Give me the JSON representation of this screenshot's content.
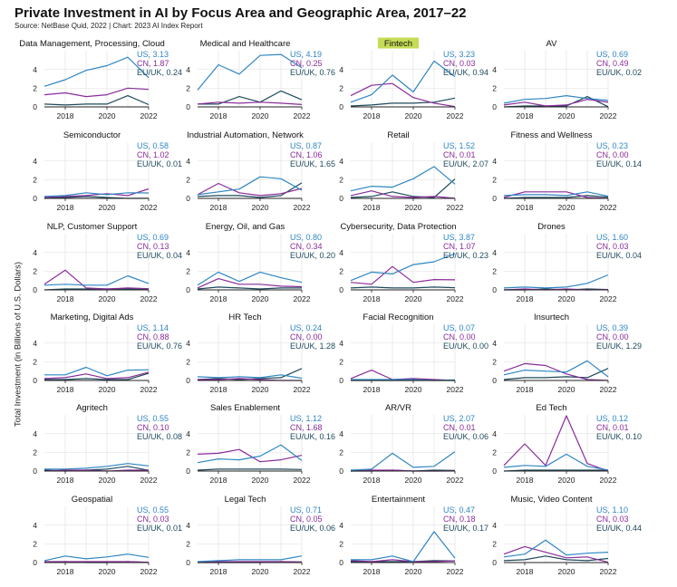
{
  "title": "Private Investment in AI by Focus Area and Geographic Area, 2017–22",
  "subtitle": "Source: NetBase Quid, 2022 | Chart: 2023 AI Index Report",
  "ylabel": "Total Investment (in Billions of U.S. Dollars)",
  "colors": {
    "US": "#2f86c3",
    "CN": "#8a2c9a",
    "EU/UK": "#1e4a5c",
    "highlight": "#c5dc56",
    "grid": "#e3e3e3",
    "axis": "#222222"
  },
  "chart_data": {
    "type": "line",
    "layout": "small-multiples",
    "x": [
      2017,
      2018,
      2019,
      2020,
      2021,
      2022
    ],
    "xticks": [
      "2018",
      "2020",
      "2022"
    ],
    "yticks": [
      "0",
      "2",
      "4"
    ],
    "ylim": [
      0,
      6
    ],
    "series_names": [
      "US",
      "CN",
      "EU/UK"
    ],
    "panels": [
      {
        "title": "Data Management, Processing, Cloud",
        "labels": [
          "US, 3.13",
          "CN, 1.87",
          "EU/UK, 0.24"
        ],
        "US": [
          2.2,
          2.9,
          3.9,
          4.4,
          5.3,
          3.13
        ],
        "CN": [
          1.3,
          1.5,
          1.1,
          1.3,
          2.0,
          1.87
        ],
        "EU/UK": [
          0.3,
          0.2,
          0.3,
          0.3,
          1.2,
          0.24
        ]
      },
      {
        "title": "Medical and Healthcare",
        "labels": [
          "US, 4.19",
          "CN, 0.25",
          "EU/UK, 0.76"
        ],
        "US": [
          1.8,
          4.5,
          3.5,
          5.5,
          5.6,
          4.19
        ],
        "CN": [
          0.3,
          0.5,
          0.4,
          0.5,
          0.4,
          0.25
        ],
        "EU/UK": [
          0.3,
          0.3,
          1.1,
          0.5,
          1.7,
          0.76
        ]
      },
      {
        "title": "Fintech",
        "highlight": true,
        "labels": [
          "US, 3.23",
          "CN, 0.03",
          "EU/UK, 0.94"
        ],
        "US": [
          0.5,
          1.3,
          3.4,
          1.6,
          4.9,
          3.23
        ],
        "CN": [
          1.2,
          2.3,
          2.5,
          1.0,
          0.4,
          0.03
        ],
        "EU/UK": [
          0.1,
          0.2,
          0.4,
          0.4,
          0.5,
          0.94
        ]
      },
      {
        "title": "AV",
        "labels": [
          "US, 0.69",
          "CN, 0.49",
          "EU/UK, 0.02"
        ],
        "US": [
          0.4,
          0.8,
          0.9,
          1.2,
          0.9,
          0.69
        ],
        "CN": [
          0.2,
          0.5,
          0.1,
          0.2,
          0.8,
          0.49
        ],
        "EU/UK": [
          0.0,
          0.1,
          0.1,
          0.1,
          1.1,
          0.02
        ]
      },
      {
        "title": "Semiconductor",
        "labels": [
          "US, 0.58",
          "CN, 1.02",
          "EU/UK, 0.01"
        ],
        "US": [
          0.2,
          0.3,
          0.6,
          0.4,
          0.6,
          0.58
        ],
        "CN": [
          0.1,
          0.2,
          0.3,
          0.5,
          0.3,
          1.02
        ],
        "EU/UK": [
          0.0,
          0.1,
          0.2,
          0.1,
          0.0,
          0.01
        ]
      },
      {
        "title": "Industrial Automation, Network",
        "labels": [
          "US, 0.87",
          "CN, 1.06",
          "EU/UK, 1.65"
        ],
        "US": [
          0.4,
          0.7,
          1.0,
          2.3,
          2.1,
          0.87
        ],
        "CN": [
          0.4,
          1.6,
          0.6,
          0.3,
          0.5,
          1.06
        ],
        "EU/UK": [
          0.2,
          0.3,
          0.3,
          0.1,
          0.3,
          1.65
        ]
      },
      {
        "title": "Retail",
        "labels": [
          "US, 1.52",
          "CN, 0.01",
          "EU/UK, 2.07"
        ],
        "US": [
          0.8,
          1.3,
          1.2,
          2.1,
          3.4,
          1.52
        ],
        "CN": [
          0.3,
          0.8,
          0.2,
          0.1,
          0.2,
          0.01
        ],
        "EU/UK": [
          0.1,
          0.2,
          0.7,
          0.2,
          0.1,
          2.07
        ]
      },
      {
        "title": "Fitness and Wellness",
        "labels": [
          "US, 0.23",
          "CN, 0.00",
          "EU/UK, 0.14"
        ],
        "US": [
          0.3,
          0.4,
          0.4,
          0.3,
          0.7,
          0.23
        ],
        "CN": [
          0.1,
          0.7,
          0.7,
          0.7,
          0.1,
          0.0
        ],
        "EU/UK": [
          0.0,
          0.1,
          0.1,
          0.1,
          0.3,
          0.14
        ]
      },
      {
        "title": "NLP, Customer Support",
        "labels": [
          "US, 0.69",
          "CN, 0.13",
          "EU/UK, 0.04"
        ],
        "US": [
          0.5,
          0.6,
          0.5,
          0.5,
          1.5,
          0.69
        ],
        "CN": [
          0.6,
          2.1,
          0.2,
          0.1,
          0.2,
          0.13
        ],
        "EU/UK": [
          0.0,
          0.1,
          0.1,
          0.1,
          0.1,
          0.04
        ]
      },
      {
        "title": "Energy, Oil, and Gas",
        "labels": [
          "US, 0.80",
          "CN, 0.34",
          "EU/UK, 0.20"
        ],
        "US": [
          0.5,
          1.9,
          0.9,
          1.9,
          1.3,
          0.8
        ],
        "CN": [
          0.2,
          1.2,
          0.6,
          0.6,
          0.4,
          0.34
        ],
        "EU/UK": [
          0.1,
          0.3,
          0.2,
          0.1,
          0.2,
          0.2
        ]
      },
      {
        "title": "Cybersecurity, Data Protection",
        "labels": [
          "US, 3.87",
          "CN, 1.07",
          "EU/UK, 0.23"
        ],
        "US": [
          1.0,
          1.9,
          1.7,
          2.7,
          3.0,
          3.87
        ],
        "CN": [
          0.8,
          0.6,
          2.5,
          0.8,
          1.1,
          1.07
        ],
        "EU/UK": [
          0.2,
          0.3,
          0.2,
          0.2,
          0.3,
          0.23
        ]
      },
      {
        "title": "Drones",
        "labels": [
          "US, 1.60",
          "CN, 0.03",
          "EU/UK, 0.04"
        ],
        "US": [
          0.2,
          0.3,
          0.2,
          0.3,
          0.7,
          1.6
        ],
        "CN": [
          0.0,
          0.1,
          0.0,
          0.1,
          0.0,
          0.03
        ],
        "EU/UK": [
          0.0,
          0.0,
          0.1,
          0.0,
          0.1,
          0.04
        ]
      },
      {
        "title": "Marketing, Digital Ads",
        "labels": [
          "US, 1.14",
          "CN, 0.88",
          "EU/UK, 0.76"
        ],
        "US": [
          0.6,
          0.6,
          1.4,
          0.5,
          1.1,
          1.14
        ],
        "CN": [
          0.2,
          0.3,
          0.7,
          0.2,
          0.3,
          0.88
        ],
        "EU/UK": [
          0.1,
          0.1,
          0.2,
          0.1,
          0.1,
          0.76
        ]
      },
      {
        "title": "HR Tech",
        "labels": [
          "US, 0.24",
          "CN, 0.00",
          "EU/UK, 1.28"
        ],
        "US": [
          0.4,
          0.3,
          0.4,
          0.3,
          0.6,
          0.24
        ],
        "CN": [
          0.1,
          0.1,
          0.2,
          0.1,
          0.0,
          0.0
        ],
        "EU/UK": [
          0.1,
          0.2,
          0.1,
          0.2,
          0.3,
          1.28
        ]
      },
      {
        "title": "Facial Recognition",
        "labels": [
          "US, 0.07",
          "CN, 0.00",
          "EU/UK, 0.00"
        ],
        "US": [
          0.1,
          0.1,
          0.1,
          0.1,
          0.0,
          0.07
        ],
        "CN": [
          0.2,
          1.1,
          0.1,
          0.2,
          0.1,
          0.0
        ],
        "EU/UK": [
          0.0,
          0.0,
          0.0,
          0.0,
          0.0,
          0.0
        ]
      },
      {
        "title": "Insurtech",
        "labels": [
          "US, 0.39",
          "CN, 0.00",
          "EU/UK, 1.29"
        ],
        "US": [
          0.6,
          1.1,
          1.0,
          0.9,
          2.1,
          0.39
        ],
        "CN": [
          1.0,
          1.8,
          1.6,
          0.7,
          0.1,
          0.0
        ],
        "EU/UK": [
          0.1,
          0.3,
          0.3,
          0.4,
          0.3,
          1.29
        ]
      },
      {
        "title": "Agritech",
        "labels": [
          "US, 0.55",
          "CN, 0.10",
          "EU/UK, 0.08"
        ],
        "US": [
          0.2,
          0.2,
          0.3,
          0.5,
          0.8,
          0.55
        ],
        "CN": [
          0.0,
          0.1,
          0.1,
          0.0,
          0.1,
          0.1
        ],
        "EU/UK": [
          0.1,
          0.0,
          0.1,
          0.2,
          0.5,
          0.08
        ]
      },
      {
        "title": "Sales Enablement",
        "labels": [
          "US, 1.12",
          "CN, 1.68",
          "EU/UK, 0.16"
        ],
        "US": [
          0.9,
          1.3,
          1.2,
          1.6,
          2.8,
          1.12
        ],
        "CN": [
          1.8,
          1.9,
          2.3,
          1.0,
          1.2,
          1.68
        ],
        "EU/UK": [
          0.1,
          0.2,
          0.2,
          0.2,
          0.2,
          0.16
        ]
      },
      {
        "title": "AR/VR",
        "labels": [
          "US, 2.07",
          "CN, 0.01",
          "EU/UK, 0.06"
        ],
        "US": [
          0.1,
          0.2,
          1.9,
          0.4,
          0.5,
          2.07
        ],
        "CN": [
          0.0,
          0.1,
          0.1,
          0.0,
          0.0,
          0.01
        ],
        "EU/UK": [
          0.0,
          0.0,
          0.1,
          0.0,
          0.1,
          0.06
        ]
      },
      {
        "title": "Ed Tech",
        "labels": [
          "US, 0.12",
          "CN, 0.01",
          "EU/UK, 0.10"
        ],
        "US": [
          0.4,
          0.6,
          0.5,
          1.8,
          0.5,
          0.12
        ],
        "CN": [
          0.6,
          2.9,
          0.6,
          5.9,
          0.8,
          0.01
        ],
        "EU/UK": [
          0.0,
          0.1,
          0.1,
          0.1,
          0.1,
          0.1
        ]
      },
      {
        "title": "Geospatial",
        "labels": [
          "US, 0.55",
          "CN, 0.03",
          "EU/UK, 0.01"
        ],
        "US": [
          0.2,
          0.7,
          0.4,
          0.6,
          0.9,
          0.55
        ],
        "CN": [
          0.1,
          0.1,
          0.1,
          0.1,
          0.1,
          0.03
        ],
        "EU/UK": [
          0.0,
          0.1,
          0.0,
          0.0,
          0.1,
          0.01
        ]
      },
      {
        "title": "Legal Tech",
        "labels": [
          "US, 0.71",
          "CN, 0.05",
          "EU/UK, 0.06"
        ],
        "US": [
          0.1,
          0.2,
          0.3,
          0.3,
          0.3,
          0.71
        ],
        "CN": [
          0.0,
          0.1,
          0.1,
          0.1,
          0.1,
          0.05
        ],
        "EU/UK": [
          0.0,
          0.0,
          0.0,
          0.0,
          0.1,
          0.06
        ]
      },
      {
        "title": "Entertainment",
        "labels": [
          "US, 0.47",
          "CN, 0.18",
          "EU/UK, 0.17"
        ],
        "US": [
          0.3,
          0.3,
          0.7,
          0.1,
          3.3,
          0.47
        ],
        "CN": [
          0.2,
          0.1,
          0.3,
          0.1,
          0.1,
          0.18
        ],
        "EU/UK": [
          0.1,
          0.1,
          0.1,
          0.1,
          0.2,
          0.17
        ]
      },
      {
        "title": "Music, Video Content",
        "labels": [
          "US, 1.10",
          "CN, 0.03",
          "EU/UK, 0.44"
        ],
        "US": [
          0.6,
          0.9,
          2.4,
          0.8,
          1.0,
          1.1
        ],
        "CN": [
          0.9,
          1.7,
          1.1,
          0.5,
          0.6,
          0.03
        ],
        "EU/UK": [
          0.2,
          0.3,
          0.7,
          0.3,
          0.2,
          0.44
        ]
      }
    ]
  }
}
